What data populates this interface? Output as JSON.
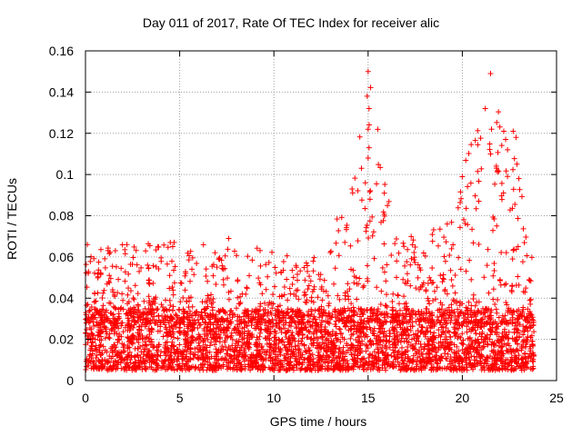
{
  "chart_data": {
    "type": "scatter",
    "title": "Day 011 of 2017, Rate Of TEC Index for receiver alic",
    "xlabel": "GPS time / hours",
    "ylabel": "ROTI / TECUs",
    "xlim": [
      0,
      25
    ],
    "ylim": [
      0,
      0.16
    ],
    "xticks": [
      0,
      5,
      10,
      15,
      20,
      25
    ],
    "xtick_labels": [
      "0",
      "5",
      "10",
      "15",
      "20",
      "25"
    ],
    "yticks": [
      0,
      0.02,
      0.04,
      0.06,
      0.08,
      0.1,
      0.12,
      0.14,
      0.16
    ],
    "ytick_labels": [
      "0",
      "0.02",
      "0.04",
      "0.06",
      "0.08",
      "0.1",
      "0.12",
      "0.14",
      "0.16"
    ],
    "grid": true,
    "marker": "+",
    "color": "#ff0000",
    "series": [
      {
        "name": "ROTI",
        "description": "dense scatter of ROTI values sampled across the day",
        "x_range": [
          0,
          23.8
        ],
        "baseline_range": [
          0.005,
          0.035
        ],
        "envelope": [
          {
            "x": 0,
            "max": 0.066
          },
          {
            "x": 2.2,
            "max": 0.066
          },
          {
            "x": 4.5,
            "max": 0.067
          },
          {
            "x": 7.5,
            "max": 0.069
          },
          {
            "x": 10,
            "max": 0.062
          },
          {
            "x": 12,
            "max": 0.058
          },
          {
            "x": 14.2,
            "max": 0.093
          },
          {
            "x": 15,
            "max": 0.15
          },
          {
            "x": 16.5,
            "max": 0.07
          },
          {
            "x": 19.2,
            "max": 0.076
          },
          {
            "x": 21.5,
            "max": 0.149
          },
          {
            "x": 22.5,
            "max": 0.12
          },
          {
            "x": 23.7,
            "max": 0.07
          }
        ],
        "outliers": [
          {
            "x": 15.0,
            "y": 0.15
          },
          {
            "x": 14.95,
            "y": 0.138
          },
          {
            "x": 15.05,
            "y": 0.132
          },
          {
            "x": 15.0,
            "y": 0.122
          },
          {
            "x": 15.05,
            "y": 0.113
          },
          {
            "x": 15.0,
            "y": 0.108
          },
          {
            "x": 14.15,
            "y": 0.093
          },
          {
            "x": 15.1,
            "y": 0.088
          },
          {
            "x": 21.5,
            "y": 0.149
          },
          {
            "x": 21.55,
            "y": 0.122
          },
          {
            "x": 22.2,
            "y": 0.121
          },
          {
            "x": 22.3,
            "y": 0.117
          },
          {
            "x": 22.7,
            "y": 0.121
          },
          {
            "x": 22.85,
            "y": 0.118
          },
          {
            "x": 21.5,
            "y": 0.11
          },
          {
            "x": 22.4,
            "y": 0.112
          },
          {
            "x": 22.9,
            "y": 0.105
          },
          {
            "x": 23.0,
            "y": 0.098
          },
          {
            "x": 19.2,
            "y": 0.076
          },
          {
            "x": 7.6,
            "y": 0.069
          },
          {
            "x": 4.5,
            "y": 0.067
          },
          {
            "x": 0.1,
            "y": 0.066
          },
          {
            "x": 2.2,
            "y": 0.066
          }
        ]
      }
    ]
  }
}
